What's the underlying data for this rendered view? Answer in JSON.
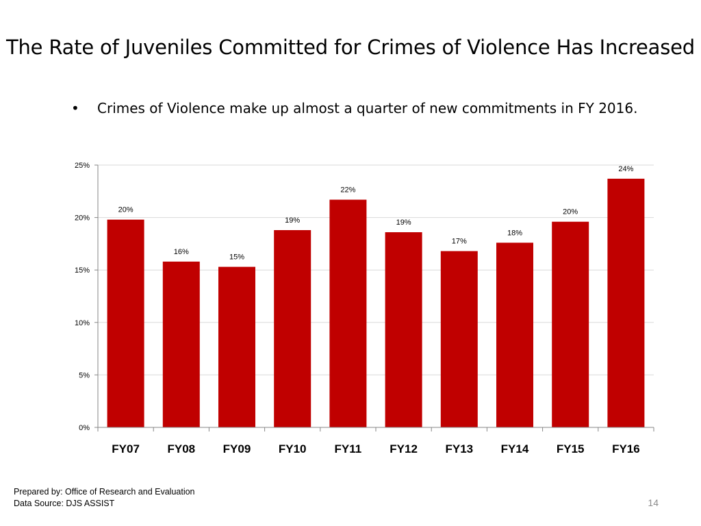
{
  "slide": {
    "title": "The Rate of Juveniles Committed for Crimes of Violence Has Increased",
    "bullet_symbol": "•",
    "bullet_text": "Crimes of Violence make up almost a quarter of new commitments in FY 2016.",
    "footer": {
      "prepared_by": "Prepared by: Office of Research and Evaluation",
      "data_source": "Data Source: DJS ASSIST"
    },
    "page_number": "14"
  },
  "chart_data": {
    "type": "bar",
    "title": "",
    "xlabel": "",
    "ylabel": "",
    "categories": [
      "FY07",
      "FY08",
      "FY09",
      "FY10",
      "FY11",
      "FY12",
      "FY13",
      "FY14",
      "FY15",
      "FY16"
    ],
    "values": [
      19.8,
      15.8,
      15.3,
      18.8,
      21.7,
      18.6,
      16.8,
      17.6,
      19.6,
      23.7
    ],
    "data_labels": [
      "20%",
      "16%",
      "15%",
      "19%",
      "22%",
      "19%",
      "17%",
      "18%",
      "20%",
      "24%"
    ],
    "ylim": [
      0,
      25
    ],
    "yticks": [
      0,
      5,
      10,
      15,
      20,
      25
    ],
    "ytick_labels": [
      "0%",
      "5%",
      "10%",
      "15%",
      "20%",
      "25%"
    ],
    "grid": true,
    "legend": "none",
    "bar_color": "#c00000",
    "grid_color": "#d9d9d9",
    "axis_color": "#868686"
  }
}
